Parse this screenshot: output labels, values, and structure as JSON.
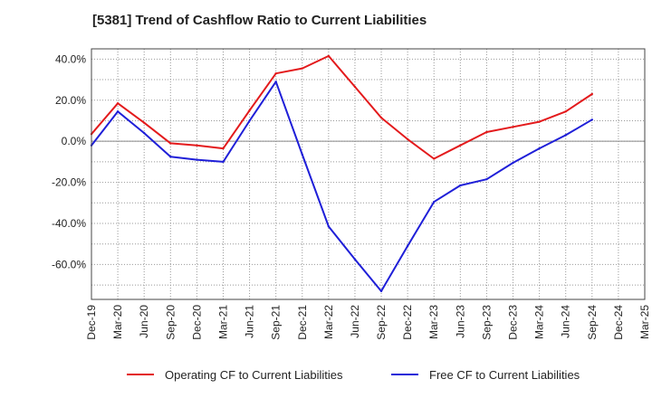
{
  "chart_data": {
    "type": "line",
    "title": "[5381]  Trend of Cashflow Ratio to Current Liabilities",
    "x": [
      "Dec-19",
      "Mar-20",
      "Jun-20",
      "Sep-20",
      "Dec-20",
      "Mar-21",
      "Jun-21",
      "Sep-21",
      "Dec-21",
      "Mar-22",
      "Jun-22",
      "Sep-22",
      "Dec-22",
      "Mar-23",
      "Jun-23",
      "Sep-23",
      "Dec-23",
      "Mar-24",
      "Jun-24",
      "Sep-24",
      "Dec-24",
      "Mar-25"
    ],
    "series": [
      {
        "name": "Operating CF to Current Liabilities",
        "color": "#e31a1c",
        "values": [
          3.5,
          18.5,
          9.0,
          -1.0,
          -2.0,
          -3.5,
          15.0,
          33.0,
          35.5,
          41.5,
          26.5,
          11.5,
          1.0,
          -8.5,
          -2.0,
          4.5,
          7.0,
          9.5,
          14.5,
          23.0,
          null,
          null
        ]
      },
      {
        "name": "Free CF to Current Liabilities",
        "color": "#1f1fd8",
        "values": [
          -2.0,
          14.5,
          4.0,
          -7.5,
          -9.0,
          -10.0,
          10.0,
          29.0,
          -6.5,
          -41.5,
          -57.5,
          -73.0,
          -51.0,
          -29.5,
          -21.5,
          -18.5,
          -10.5,
          -3.5,
          3.0,
          10.5,
          null,
          null
        ]
      }
    ],
    "y_ticks": [
      "40.0%",
      "20.0%",
      "0.0%",
      "-20.0%",
      "-40.0%",
      "-60.0%"
    ],
    "ylim": [
      -77,
      45
    ],
    "grid": true,
    "legend_position": "bottom"
  }
}
